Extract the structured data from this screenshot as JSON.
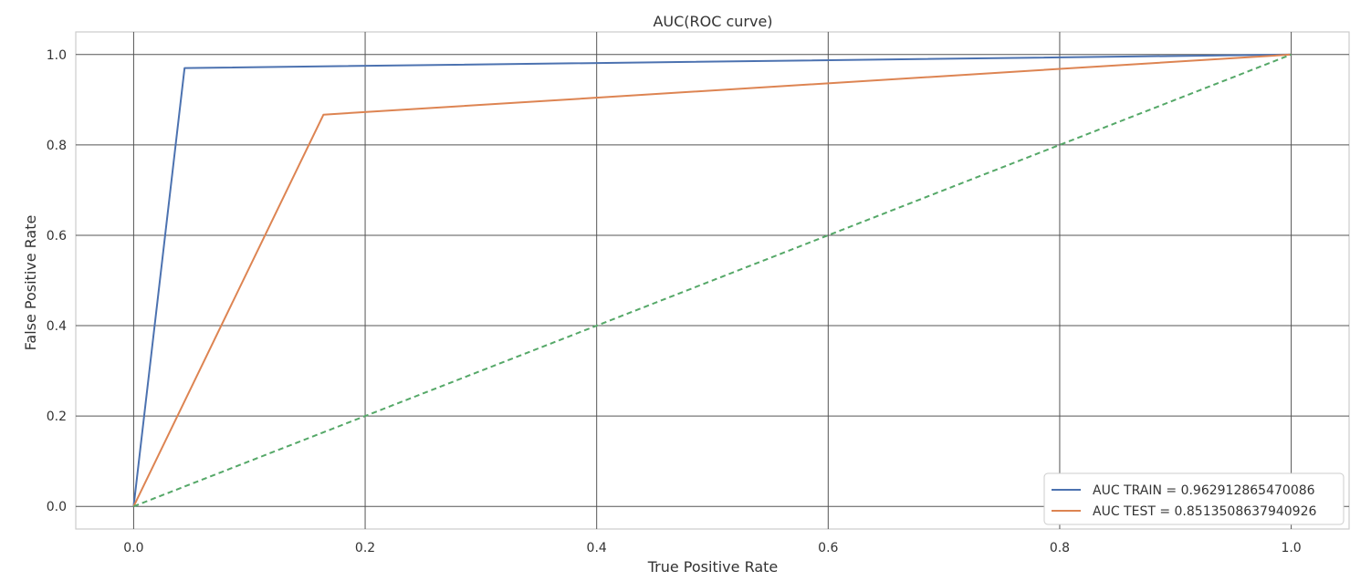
{
  "chart_data": {
    "type": "line",
    "title": "AUC(ROC curve)",
    "xlabel": "True Positive Rate",
    "ylabel": "False Positive Rate",
    "xlim": [
      -0.05,
      1.05
    ],
    "ylim": [
      -0.05,
      1.05
    ],
    "xticks": [
      0.0,
      0.2,
      0.4,
      0.6,
      0.8,
      1.0
    ],
    "yticks": [
      0.0,
      0.2,
      0.4,
      0.6,
      0.8,
      1.0
    ],
    "xtick_labels": [
      "0.0",
      "0.2",
      "0.4",
      "0.6",
      "0.8",
      "1.0"
    ],
    "ytick_labels": [
      "0.0",
      "0.2",
      "0.4",
      "0.6",
      "0.8",
      "1.0"
    ],
    "grid": true,
    "legend_position": "lower-right",
    "series": [
      {
        "name": "AUC TRAIN = 0.962912865470086",
        "color": "#4c72b0",
        "dash": "solid",
        "x": [
          0.0,
          0.044,
          1.0
        ],
        "y": [
          0.0,
          0.97,
          1.0
        ]
      },
      {
        "name": "AUC TEST  = 0.8513508637940926",
        "color": "#dd8452",
        "dash": "solid",
        "x": [
          0.0,
          0.164,
          1.0
        ],
        "y": [
          0.0,
          0.867,
          1.0
        ]
      },
      {
        "name": "",
        "color": "#55a868",
        "dash": "dashed",
        "x": [
          0.0,
          1.0
        ],
        "y": [
          0.0,
          1.0
        ]
      }
    ]
  }
}
